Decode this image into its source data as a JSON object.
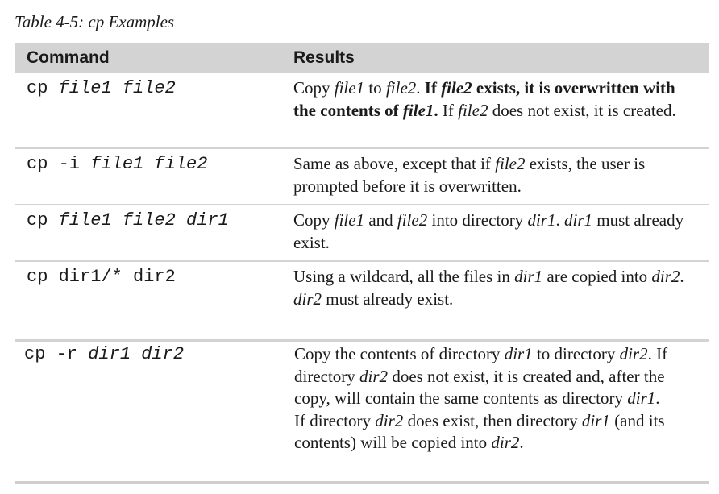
{
  "caption": "Table 4-5: cp Examples",
  "headers": {
    "command": "Command",
    "results": "Results"
  },
  "rows": [
    {
      "command": [
        {
          "t": "cp "
        },
        {
          "t": "file1 file2",
          "i": true
        }
      ],
      "result": [
        {
          "t": "Copy "
        },
        {
          "t": "file1",
          "i": true
        },
        {
          "t": " to "
        },
        {
          "t": "file2",
          "i": true
        },
        {
          "t": ". "
        },
        {
          "t": "If ",
          "b": true
        },
        {
          "t": "file2",
          "b": true,
          "i": true
        },
        {
          "t": " exists, it is overwritten with the contents of ",
          "b": true
        },
        {
          "t": "file1",
          "b": true,
          "i": true
        },
        {
          "t": ".",
          "b": true
        },
        {
          "t": " If "
        },
        {
          "t": "file2",
          "i": true
        },
        {
          "t": " does not exist, it is created."
        }
      ]
    },
    {
      "command": [
        {
          "t": "cp -i "
        },
        {
          "t": "file1 file2",
          "i": true
        }
      ],
      "result": [
        {
          "t": "Same as above, except that if "
        },
        {
          "t": "file2",
          "i": true
        },
        {
          "t": " exists, the user is prompted before it is overwritten."
        }
      ]
    },
    {
      "command": [
        {
          "t": "cp "
        },
        {
          "t": "file1 file2 dir1",
          "i": true
        }
      ],
      "result": [
        {
          "t": "Copy "
        },
        {
          "t": "file1",
          "i": true
        },
        {
          "t": " and "
        },
        {
          "t": "file2",
          "i": true
        },
        {
          "t": " into directory "
        },
        {
          "t": "dir1",
          "i": true
        },
        {
          "t": ". "
        },
        {
          "t": "dir1",
          "i": true
        },
        {
          "t": " must already exist."
        }
      ]
    },
    {
      "command": [
        {
          "t": "cp dir1/* dir2"
        }
      ],
      "result": [
        {
          "t": "Using a wildcard, all the files in "
        },
        {
          "t": "dir1",
          "i": true
        },
        {
          "t": " are copied into "
        },
        {
          "t": "dir2",
          "i": true
        },
        {
          "t": ". "
        },
        {
          "t": "dir2",
          "i": true
        },
        {
          "t": " must already exist."
        }
      ]
    },
    {
      "command": [
        {
          "t": "cp -r "
        },
        {
          "t": "dir1 dir2",
          "i": true
        }
      ],
      "result": [
        {
          "t": "Copy the contents of directory "
        },
        {
          "t": "dir1",
          "i": true
        },
        {
          "t": " to directory "
        },
        {
          "t": "dir2",
          "i": true
        },
        {
          "t": ". If directory "
        },
        {
          "t": "dir2",
          "i": true
        },
        {
          "t": " does not exist, it is created and, after the copy, will contain the same contents as directory "
        },
        {
          "t": "dir1",
          "i": true
        },
        {
          "t": "."
        },
        {
          "br": true
        },
        {
          "t": "If directory "
        },
        {
          "t": "dir2",
          "i": true
        },
        {
          "t": " does exist, then directory "
        },
        {
          "t": "dir1",
          "i": true
        },
        {
          "t": " (and its contents) will be copied into "
        },
        {
          "t": "dir2",
          "i": true
        },
        {
          "t": "."
        }
      ]
    }
  ]
}
